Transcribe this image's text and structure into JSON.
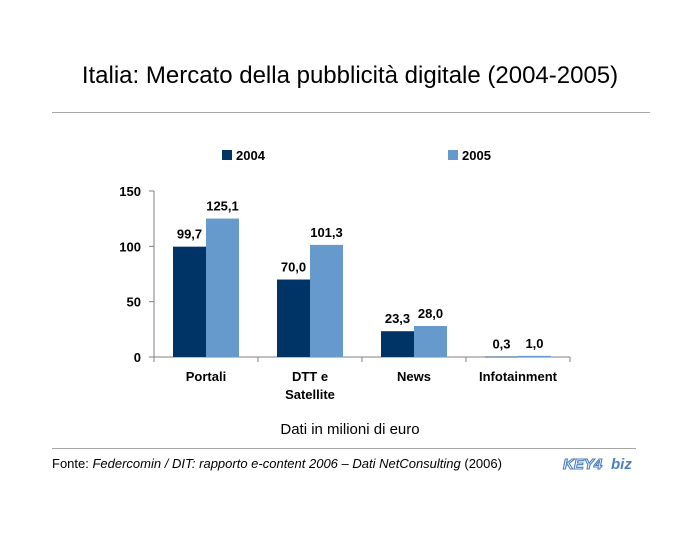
{
  "title": "Italia: Mercato della pubblicità digitale (2004-2005)",
  "note": "Dati in milioni di euro",
  "source": {
    "prefix": "Fonte: ",
    "italic": "Federcomin / DIT: rapporto e-content 2006 – Dati NetConsulting",
    "suffix": " (2006)"
  },
  "logo": {
    "part1": "KEY4",
    "part2": "biz"
  },
  "colors": {
    "series2004": "#003366",
    "series2005": "#6699cc"
  },
  "chart_data": {
    "type": "bar",
    "categories": [
      "Portali",
      "DTT e Satellite",
      "News",
      "Infotainment"
    ],
    "category_lines": [
      [
        "Portali"
      ],
      [
        "DTT e",
        "Satellite"
      ],
      [
        "News"
      ],
      [
        "Infotainment"
      ]
    ],
    "series": [
      {
        "name": "2004",
        "values": [
          99.7,
          70.0,
          23.3,
          0.3
        ],
        "labels": [
          "99,7",
          "70,0",
          "23,3",
          "0,3"
        ]
      },
      {
        "name": "2005",
        "values": [
          125.1,
          101.3,
          28.0,
          1.0
        ],
        "labels": [
          "125,1",
          "101,3",
          "28,0",
          "1,0"
        ]
      }
    ],
    "ylim": [
      0,
      150
    ],
    "yticks": [
      0,
      50,
      100,
      150
    ],
    "ytick_labels": [
      "0",
      "50",
      "100",
      "150"
    ],
    "legend": "top",
    "grid": false
  }
}
